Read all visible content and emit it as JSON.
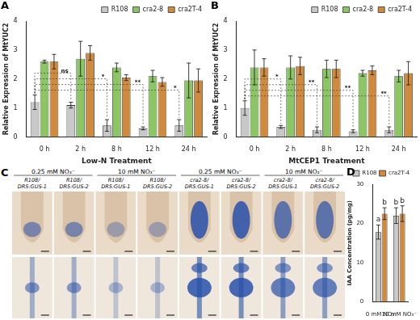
{
  "chart_data": [
    {
      "type": "bar",
      "panel": "A",
      "x_label": "Low-N Treatment",
      "y_label": "Relative Expression of MtYUC2",
      "categories": [
        "0 h",
        "2 h",
        "8 h",
        "12 h",
        "24 h"
      ],
      "series": [
        {
          "name": "R108",
          "color": "#c8c8c8",
          "values": [
            1.2,
            1.1,
            0.4,
            0.3,
            0.4
          ],
          "errors": [
            0.25,
            0.1,
            0.2,
            0.05,
            0.2
          ]
        },
        {
          "name": "cra2-8",
          "color": "#8cc563",
          "values": [
            2.6,
            2.7,
            2.4,
            2.1,
            1.95
          ],
          "errors": [
            0.05,
            0.6,
            0.15,
            0.2,
            0.6
          ]
        },
        {
          "name": "cra2T-4",
          "color": "#d08a3e",
          "values": [
            2.6,
            2.9,
            2.05,
            1.9,
            1.95
          ],
          "errors": [
            0.25,
            0.25,
            0.1,
            0.15,
            0.4
          ]
        }
      ],
      "annotations": [
        {
          "category": "2 h",
          "text": "ns"
        },
        {
          "category": "8 h",
          "text": "*"
        },
        {
          "category": "12 h",
          "text": "**"
        },
        {
          "category": "24 h",
          "text": "*"
        }
      ],
      "ylim": [
        0,
        4
      ],
      "yticks": [
        0,
        1,
        2,
        3,
        4
      ],
      "grid": false,
      "legend": "top"
    },
    {
      "type": "bar",
      "panel": "B",
      "x_label": "MtCEP1 Treatment",
      "y_label": "Relative Expression of MtYUC2",
      "categories": [
        "0 h",
        "2 h",
        "8 h",
        "12 h",
        "24 h"
      ],
      "series": [
        {
          "name": "R108",
          "color": "#c8c8c8",
          "values": [
            1.0,
            0.35,
            0.25,
            0.2,
            0.25
          ],
          "errors": [
            0.25,
            0.05,
            0.1,
            0.05,
            0.1
          ]
        },
        {
          "name": "cra2-8",
          "color": "#8cc563",
          "values": [
            2.4,
            2.4,
            2.35,
            2.2,
            2.1
          ],
          "errors": [
            0.6,
            0.4,
            0.3,
            0.1,
            0.2
          ]
        },
        {
          "name": "cra2T-4",
          "color": "#d08a3e",
          "values": [
            2.4,
            2.45,
            2.35,
            2.3,
            2.2
          ],
          "errors": [
            0.3,
            0.3,
            0.3,
            0.15,
            0.4
          ]
        }
      ],
      "annotations": [
        {
          "category": "2 h",
          "text": "*"
        },
        {
          "category": "8 h",
          "text": "**"
        },
        {
          "category": "12 h",
          "text": "**"
        },
        {
          "category": "24 h",
          "text": "**"
        }
      ],
      "ylim": [
        0,
        4
      ],
      "yticks": [
        0,
        1,
        2,
        3,
        4
      ],
      "grid": false,
      "legend": "top"
    },
    {
      "type": "bar",
      "panel": "D",
      "y_label": "IAA Concentration (pg/mg)",
      "categories": [
        "0 mM NO₃⁻",
        "10 mM NO₃⁻"
      ],
      "series": [
        {
          "name": "R108",
          "color": "#c8c8c8",
          "values": [
            17.8,
            22.0
          ],
          "errors": [
            1.8,
            2.0
          ],
          "letters": [
            "a",
            "b"
          ]
        },
        {
          "name": "cra2T-4",
          "color": "#d08a3e",
          "values": [
            22.5,
            22.5
          ],
          "errors": [
            1.5,
            2.0
          ],
          "letters": [
            "b",
            "b"
          ]
        }
      ],
      "ylim": [
        0,
        30
      ],
      "yticks": [
        0,
        10,
        20,
        30
      ],
      "grid": false,
      "legend": "top"
    }
  ],
  "image_panel": {
    "panel": "C",
    "groups": [
      {
        "label": "0.25 mM NO₃⁻",
        "columns": [
          [
            "R108/",
            "DR5:GUS-1"
          ],
          [
            "R108/",
            "DR5:GUS-2"
          ]
        ]
      },
      {
        "label": "10 mM NO₃⁻",
        "columns": [
          [
            "R108/",
            "DR5:GUS-1"
          ],
          [
            "R108/",
            "DR5:GUS-2"
          ]
        ]
      },
      {
        "label": "0.25 mM NO₃⁻",
        "columns": [
          [
            "cra2-8/",
            "DR5:GUS-1"
          ],
          [
            "cra2-8/",
            "DR5:GUS-2"
          ]
        ]
      },
      {
        "label": "10 mM NO₃⁻",
        "columns": [
          [
            "cra2-8/",
            "DR5:GUS-1"
          ],
          [
            "cra2-8/",
            "DR5:GUS-2"
          ]
        ]
      }
    ]
  }
}
